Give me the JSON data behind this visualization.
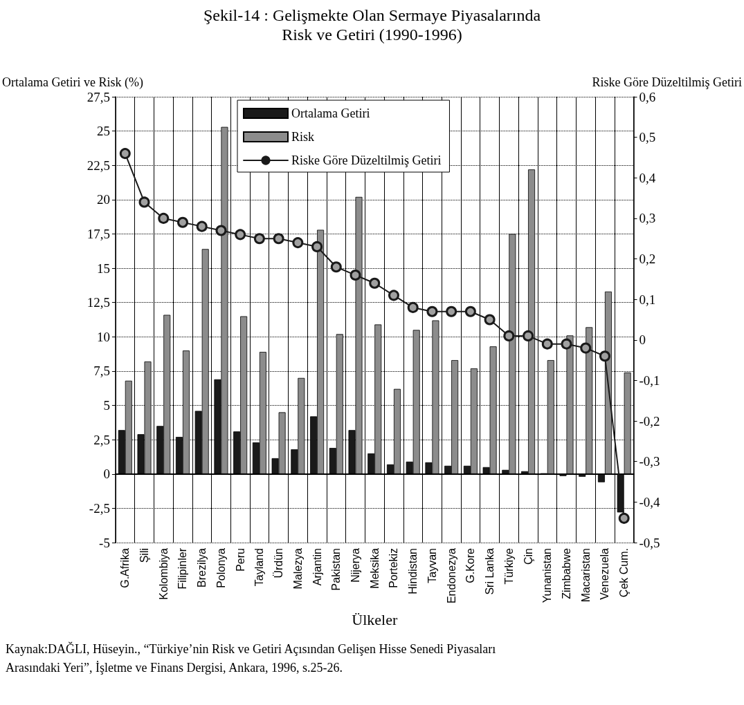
{
  "chart_data": {
    "type": "bar",
    "title": "Şekil-14 : Gelişmekte Olan Sermaye Piyasalarında",
    "subtitle": "Risk ve Getiri (1990-1996)",
    "xlabel": "Ülkeler",
    "ylabel": "Ortalama Getiri ve Risk (%)",
    "y2label": "Riske Göre Düzeltilmiş Getiri",
    "categories": [
      "G.Afrika",
      "Şili",
      "Kolombiya",
      "Filipinler",
      "Brezilya",
      "Polonya",
      "Peru",
      "Tayland",
      "Ürdün",
      "Malezya",
      "Arjantin",
      "Pakistan",
      "Nijerya",
      "Meksika",
      "Portekiz",
      "Hindistan",
      "Tayvan",
      "Endonezya",
      "G.Kore",
      "Sri Lanka",
      "Türkiye",
      "Çin",
      "Yunanistan",
      "Zimbabwe",
      "Macaristan",
      "Venezuela",
      "Çek Cum."
    ],
    "series": [
      {
        "name": "Ortalama Getiri",
        "color": "#1a1a1a",
        "values": [
          3.2,
          2.9,
          3.5,
          2.7,
          4.6,
          6.9,
          3.1,
          2.3,
          1.15,
          1.8,
          4.2,
          1.9,
          3.2,
          1.5,
          0.7,
          0.9,
          0.85,
          0.6,
          0.6,
          0.5,
          0.3,
          0.2,
          0.05,
          -0.15,
          -0.2,
          -0.6,
          -2.8
        ]
      },
      {
        "name": "Risk",
        "color": "#8c8c8c",
        "values": [
          6.8,
          8.2,
          11.6,
          9.0,
          16.4,
          25.3,
          11.5,
          8.9,
          4.5,
          7.0,
          17.8,
          10.2,
          20.2,
          10.9,
          6.2,
          10.5,
          11.2,
          8.3,
          7.7,
          9.3,
          17.5,
          22.2,
          8.3,
          10.1,
          10.7,
          13.3,
          7.4
        ]
      },
      {
        "name": "Riske Göre Düzeltilmiş Getiri",
        "type": "line",
        "axis": "y2",
        "color": "#1a1a1a",
        "values": [
          0.46,
          0.34,
          0.3,
          0.29,
          0.28,
          0.27,
          0.26,
          0.25,
          0.25,
          0.24,
          0.23,
          0.18,
          0.16,
          0.14,
          0.11,
          0.08,
          0.07,
          0.07,
          0.07,
          0.05,
          0.01,
          0.01,
          -0.01,
          -0.01,
          -0.02,
          -0.04,
          -0.44
        ]
      }
    ],
    "ylim": [
      -5,
      27.5
    ],
    "yticks": [
      -5,
      {
        "value": -2.5,
        "label": "-2,5"
      },
      0,
      {
        "value": 2.5,
        "label": "2,5"
      },
      5,
      {
        "value": 7.5,
        "label": "7,5"
      },
      10,
      {
        "value": 12.5,
        "label": "12,5"
      },
      15,
      {
        "value": 17.5,
        "label": "17,5"
      },
      20,
      {
        "value": 22.5,
        "label": "22,5"
      },
      25,
      {
        "value": 27.5,
        "label": "27,5"
      }
    ],
    "y2lim": [
      -0.5,
      0.6
    ],
    "y2ticks": [
      {
        "value": -0.5,
        "label": "-0,5"
      },
      {
        "value": -0.4,
        "label": "-0,4"
      },
      {
        "value": -0.3,
        "label": "-0,3"
      },
      {
        "value": -0.2,
        "label": "-0,2"
      },
      {
        "value": -0.1,
        "label": "-0,1"
      },
      0,
      {
        "value": 0.1,
        "label": "0,1"
      },
      {
        "value": 0.2,
        "label": "0,2"
      },
      {
        "value": 0.3,
        "label": "0,3"
      },
      {
        "value": 0.4,
        "label": "0,4"
      },
      {
        "value": 0.5,
        "label": "0,5"
      },
      {
        "value": 0.6,
        "label": "0,6"
      }
    ],
    "grid": true,
    "legend": "top",
    "marker": "circle",
    "line_style": "solid",
    "annotations": [
      "Kaynak:DAĞLI, Hüseyin., “Türkiye’nin Risk ve Getiri Açısından Gelişen Hisse Senedi Piyasaları Arasındaki Yeri”, İşletme ve Finans Dergisi, Ankara, 1996, s.25-26."
    ]
  }
}
